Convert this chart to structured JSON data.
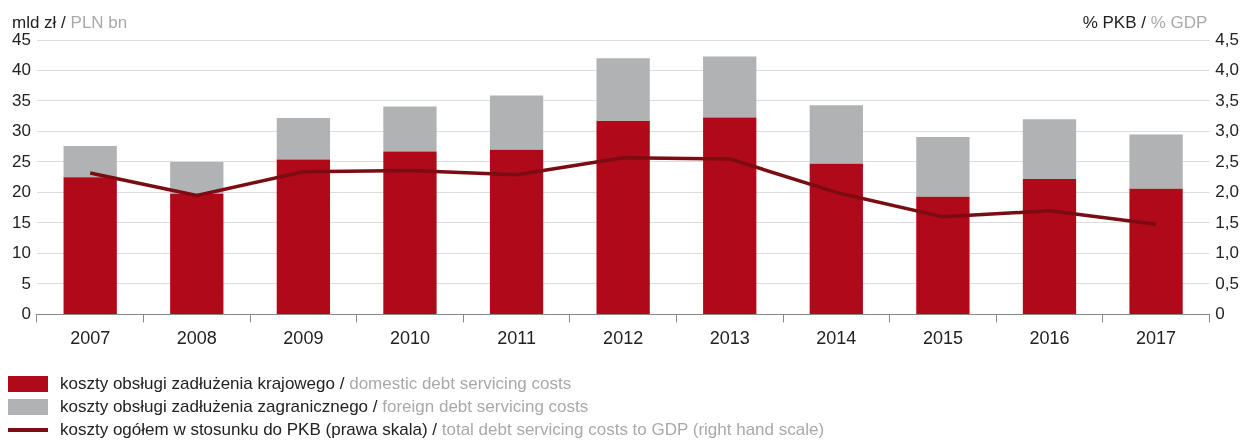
{
  "chart_data": {
    "type": "bar",
    "stacked": true,
    "ylabel": "mld zł / PLN bn",
    "y2label": "% PKB / % GDP",
    "categories": [
      "2007",
      "2008",
      "2009",
      "2010",
      "2011",
      "2012",
      "2013",
      "2014",
      "2015",
      "2016",
      "2017"
    ],
    "series": [
      {
        "name": "koszty obsługi zadłużenia krajowego / domestic debt servicing costs",
        "color": "#b00a1a",
        "values": [
          22.5,
          19.8,
          25.4,
          26.7,
          27.0,
          31.7,
          32.3,
          24.7,
          19.3,
          22.2,
          20.6
        ]
      },
      {
        "name": "koszty obsługi zadłużenia zagranicznego / foreign debt servicing costs",
        "color": "#b1b2b4",
        "values": [
          5.1,
          5.2,
          6.8,
          7.4,
          8.9,
          10.3,
          10.0,
          9.6,
          9.8,
          9.8,
          8.9
        ]
      },
      {
        "name": "koszty ogółem w stosunku do PKB (prawa skala) / total debt servicing costs to GDP (right hand scale)",
        "type": "line",
        "axis": "y2",
        "color": "#7a0c12",
        "values": [
          2.32,
          1.95,
          2.34,
          2.36,
          2.29,
          2.57,
          2.55,
          2.0,
          1.6,
          1.7,
          1.48
        ]
      }
    ],
    "ylim": [
      0,
      45
    ],
    "yticks": [
      0,
      5,
      10,
      15,
      20,
      25,
      30,
      35,
      40,
      45
    ],
    "y2lim": [
      0,
      4.5
    ],
    "y2ticks": [
      0,
      {
        "value": 0.5,
        "label": "0,5"
      },
      {
        "value": 1,
        "label": "1,0"
      },
      {
        "value": 1.5,
        "label": "1,5"
      },
      {
        "value": 2,
        "label": "2,0"
      },
      {
        "value": 2.5,
        "label": "2,5"
      },
      {
        "value": 3,
        "label": "3,0"
      },
      {
        "value": 3.5,
        "label": "3,5"
      },
      {
        "value": 4,
        "label": "4,0"
      },
      {
        "value": 4.5,
        "label": "4,5"
      }
    ],
    "grid": "y",
    "legend": "bottom",
    "marker": "none",
    "line_style": "solid"
  }
}
